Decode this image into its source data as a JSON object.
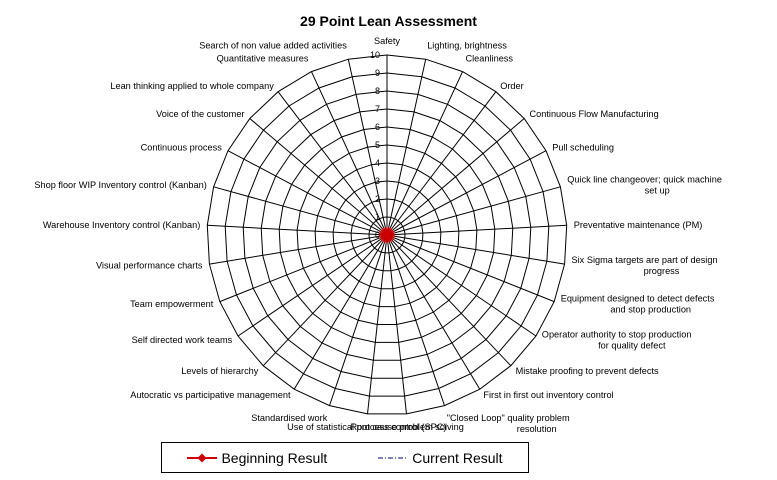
{
  "chart_data": {
    "type": "radar",
    "title": "29 Point Lean Assessment",
    "categories": [
      "Safety",
      "Lighting, brightness",
      "Cleanliness",
      "Order",
      "Continuous Flow Manufacturing",
      "Pull scheduling",
      "Quick line changeover; quick machine set up",
      "Preventative maintenance (PM)",
      "Six Sigma targets are part of design progress",
      "Equipment designed to detect defects and stop production",
      "Operator authority to stop production for quality defect",
      "Mistake proofing to prevent defects",
      "First in first out inventory control",
      "\"Closed Loop\" quality problem resolution",
      "Root cause problem solving",
      "Use of statistical process control (SPC)",
      "Standardised work",
      "Autocratic vs participative management",
      "Levels of hierarchy",
      "Self directed work teams",
      "Team empowerment",
      "Visual performance charts",
      "Warehouse Inventory control (Kanban)",
      "Shop floor WIP Inventory control (Kanban)",
      "Continuous process",
      "Voice of the customer",
      "Lean thinking applied to whole company",
      "Quantitative measures",
      "Search of non value added activities"
    ],
    "radial_range": [
      0,
      10
    ],
    "radial_ticks": [
      "0",
      "1",
      "2",
      "3",
      "4",
      "5",
      "6",
      "7",
      "8",
      "9",
      "10"
    ],
    "series": [
      {
        "name": "Beginning Result",
        "color": "#cc0000",
        "marker": "diamond",
        "values": [
          0,
          0,
          0,
          0,
          0,
          0,
          0,
          0,
          0,
          0,
          0,
          0,
          0,
          0,
          0,
          0,
          0,
          0,
          0,
          0,
          0,
          0,
          0,
          0,
          0,
          0,
          0,
          0,
          0
        ]
      },
      {
        "name": "Current Result",
        "color": "#000080",
        "marker": "none",
        "values": [
          0,
          0,
          0,
          0,
          0,
          0,
          0,
          0,
          0,
          0,
          0,
          0,
          0,
          0,
          0,
          0,
          0,
          0,
          0,
          0,
          0,
          0,
          0,
          0,
          0,
          0,
          0,
          0,
          0
        ]
      }
    ],
    "legend_position": "bottom",
    "grid": true
  }
}
